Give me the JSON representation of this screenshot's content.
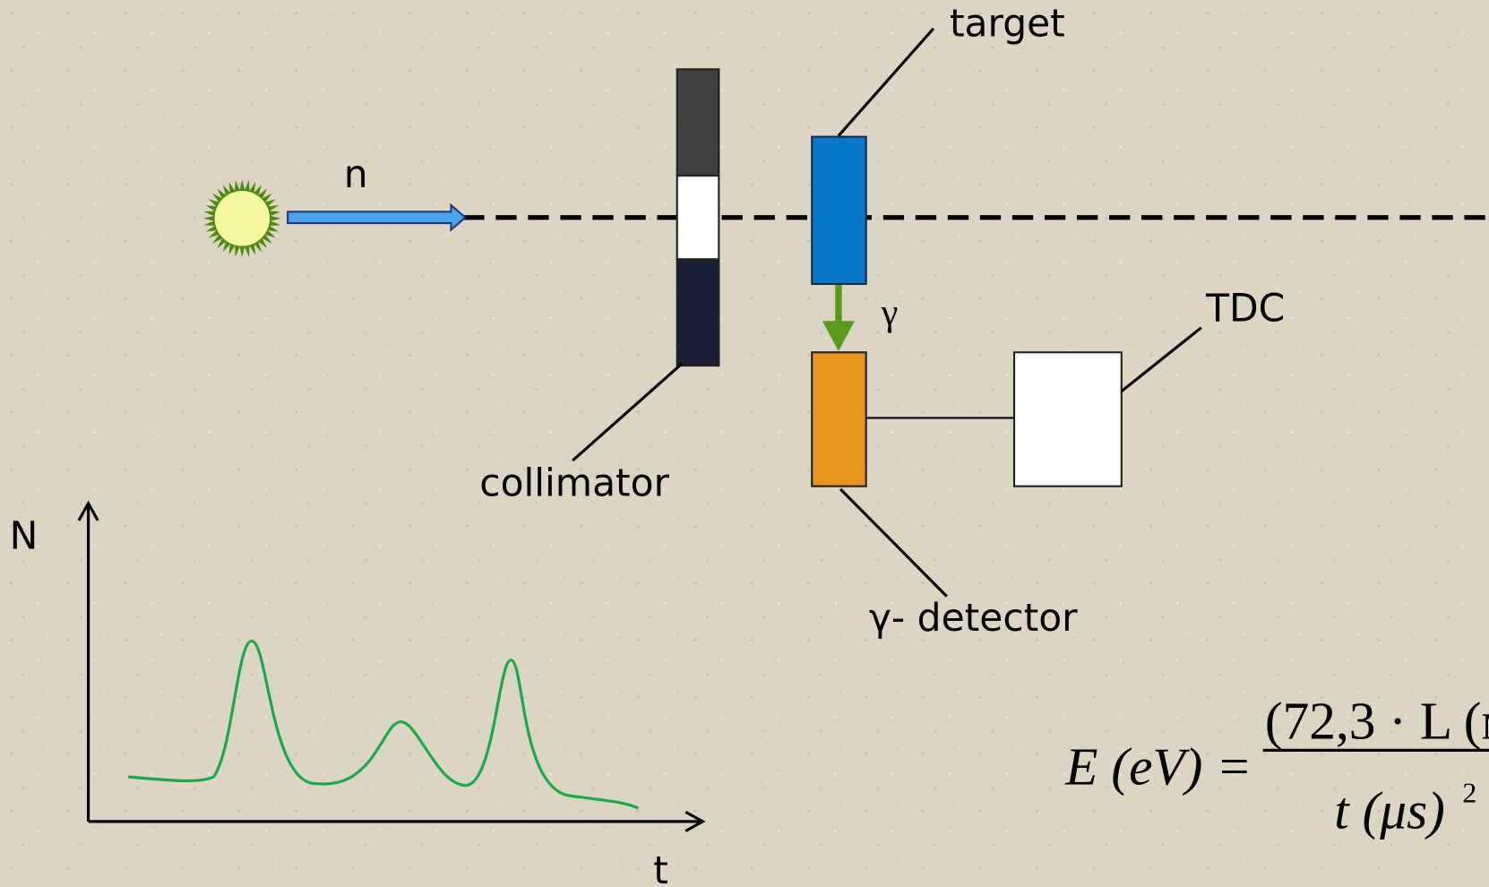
{
  "labels": {
    "target": "target",
    "neutron": "n",
    "gamma": "γ",
    "tdc": "TDC",
    "collimator": "collimator",
    "detector": "γ- detector",
    "y_axis": "N",
    "x_axis": "t"
  },
  "formula": {
    "lhs": "E (eV) =",
    "numerator": "(72,3 · L (м",
    "denominator": "t (μs)",
    "exponent": "2"
  }
}
